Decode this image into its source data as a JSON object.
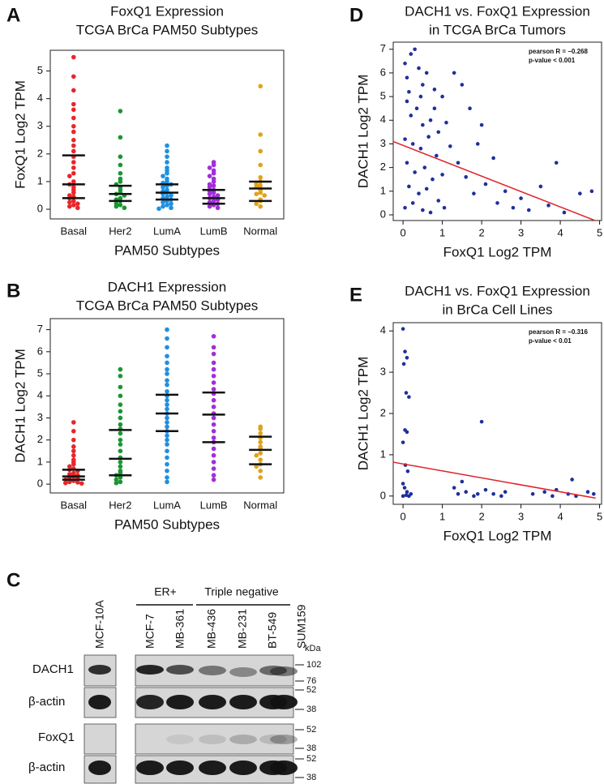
{
  "chart_data": [
    {
      "type": "beeswarm",
      "panel_label": "A",
      "title": "FoxQ1 Expression",
      "subtitle": "TCGA BrCa PAM50 Subtypes",
      "xlabel": "PAM50 Subtypes",
      "ylabel": "FoxQ1 Log2 TPM",
      "categories": [
        "Basal",
        "Her2",
        "LumA",
        "LumB",
        "Normal"
      ],
      "colors": [
        "#e8262a",
        "#1a9632",
        "#1f8fe0",
        "#a12fd8",
        "#e0a21a"
      ],
      "values": [
        [
          5.5,
          4.8,
          4.3,
          3.8,
          3.6,
          3.3,
          3.0,
          2.8,
          2.5,
          2.3,
          2.1,
          1.9,
          1.7,
          1.5,
          1.3,
          1.2,
          1.0,
          0.9,
          0.8,
          0.7,
          0.6,
          0.5,
          0.45,
          0.4,
          0.3,
          0.25,
          0.2,
          0.15,
          0.1,
          0.05
        ],
        [
          3.55,
          2.6,
          1.9,
          1.6,
          1.3,
          1.1,
          1.0,
          0.9,
          0.8,
          0.7,
          0.6,
          0.55,
          0.5,
          0.4,
          0.35,
          0.3,
          0.2,
          0.15,
          0.1,
          0.05
        ],
        [
          2.3,
          2.1,
          1.9,
          1.7,
          1.5,
          1.4,
          1.3,
          1.2,
          1.1,
          1.0,
          0.95,
          0.9,
          0.85,
          0.8,
          0.7,
          0.65,
          0.6,
          0.55,
          0.5,
          0.45,
          0.4,
          0.35,
          0.3,
          0.25,
          0.2,
          0.15,
          0.1,
          0.05,
          0.02
        ],
        [
          1.7,
          1.6,
          1.5,
          1.4,
          1.3,
          1.2,
          1.1,
          1.0,
          0.9,
          0.85,
          0.8,
          0.7,
          0.65,
          0.6,
          0.55,
          0.5,
          0.45,
          0.4,
          0.35,
          0.3,
          0.25,
          0.2,
          0.15,
          0.1,
          0.05
        ],
        [
          4.45,
          2.7,
          2.1,
          1.6,
          1.15,
          1.0,
          0.9,
          0.85,
          0.8,
          0.7,
          0.6,
          0.55,
          0.5,
          0.35,
          0.3,
          0.2,
          0.1
        ]
      ],
      "quartiles": [
        [
          0.4,
          0.9,
          1.95
        ],
        [
          0.3,
          0.55,
          0.85
        ],
        [
          0.35,
          0.6,
          0.9
        ],
        [
          0.2,
          0.4,
          0.7
        ],
        [
          0.3,
          0.75,
          1.0
        ]
      ],
      "ylim": [
        -0.35,
        5.75
      ],
      "yticks": [
        0,
        1,
        2,
        3,
        4,
        5
      ]
    },
    {
      "type": "beeswarm",
      "panel_label": "B",
      "title": "DACH1 Expression",
      "subtitle": "TCGA BrCa PAM50 Subtypes",
      "xlabel": "PAM50 Subtypes",
      "ylabel": "DACH1  Log2 TPM",
      "categories": [
        "Basal",
        "Her2",
        "LumA",
        "LumB",
        "Normal"
      ],
      "colors": [
        "#e8262a",
        "#1a9632",
        "#1f8fe0",
        "#a12fd8",
        "#e0a21a"
      ],
      "values": [
        [
          2.8,
          2.4,
          2.0,
          1.7,
          1.5,
          1.3,
          1.1,
          1.0,
          0.9,
          0.8,
          0.7,
          0.65,
          0.6,
          0.5,
          0.45,
          0.4,
          0.35,
          0.3,
          0.25,
          0.2,
          0.15,
          0.1,
          0.08,
          0.05,
          0.03
        ],
        [
          5.2,
          4.9,
          4.4,
          4.0,
          3.6,
          3.3,
          3.0,
          2.7,
          2.5,
          2.3,
          2.0,
          1.8,
          1.5,
          1.2,
          1.0,
          0.8,
          0.6,
          0.5,
          0.4,
          0.3,
          0.2,
          0.1,
          0.05
        ],
        [
          7.0,
          6.6,
          6.2,
          5.8,
          5.5,
          5.2,
          5.0,
          4.7,
          4.5,
          4.2,
          4.0,
          3.8,
          3.6,
          3.4,
          3.2,
          3.0,
          2.8,
          2.6,
          2.4,
          2.2,
          2.0,
          1.8,
          1.5,
          1.2,
          0.9,
          0.6,
          0.3,
          0.1
        ],
        [
          6.7,
          6.2,
          5.9,
          5.5,
          5.2,
          4.9,
          4.6,
          4.3,
          4.1,
          3.8,
          3.5,
          3.2,
          3.0,
          2.7,
          2.4,
          2.1,
          1.9,
          1.6,
          1.3,
          1.0,
          0.7,
          0.4,
          0.2
        ],
        [
          2.6,
          2.5,
          2.3,
          2.1,
          1.9,
          1.7,
          1.6,
          1.4,
          1.3,
          1.1,
          0.9,
          0.8,
          0.6,
          0.3
        ]
      ],
      "quartiles": [
        [
          0.2,
          0.35,
          0.65
        ],
        [
          0.4,
          1.15,
          2.45
        ],
        [
          2.4,
          3.2,
          4.05
        ],
        [
          1.9,
          3.15,
          4.15
        ],
        [
          0.9,
          1.55,
          2.15
        ]
      ],
      "ylim": [
        -0.4,
        7.5
      ],
      "yticks": [
        0,
        1,
        2,
        3,
        4,
        5,
        6,
        7
      ]
    },
    {
      "type": "scatter",
      "panel_label": "D",
      "title": "DACH1 vs. FoxQ1 Expression",
      "subtitle": "in TCGA BrCa Tumors",
      "xlabel": "FoxQ1 Log2 TPM",
      "ylabel": "DACH1  Log2 TPM",
      "color": "#1f2f9a",
      "fit_color": "#e0202a",
      "stats": [
        "pearson R = −0.268",
        "p-value < 0.001"
      ],
      "x": [
        0.05,
        0.1,
        0.2,
        0.3,
        0.4,
        0.5,
        0.6,
        0.8,
        1.0,
        1.3,
        0.1,
        0.2,
        0.35,
        0.5,
        0.7,
        0.9,
        1.1,
        0.05,
        0.25,
        0.45,
        0.65,
        0.85,
        1.2,
        0.1,
        0.3,
        0.55,
        0.75,
        1.0,
        0.15,
        0.4,
        0.6,
        0.9,
        0.05,
        0.25,
        0.5,
        0.7,
        1.05,
        1.4,
        1.6,
        1.8,
        2.0,
        2.1,
        2.4,
        2.6,
        2.8,
        3.0,
        3.2,
        3.5,
        3.7,
        3.9,
        4.1,
        4.5,
        4.8,
        1.5,
        1.7,
        1.9,
        2.3,
        0.15,
        0.45,
        0.8
      ],
      "y": [
        6.4,
        5.8,
        6.8,
        7.0,
        6.2,
        5.5,
        6.0,
        5.3,
        5.0,
        6.0,
        4.8,
        4.2,
        4.5,
        3.8,
        4.0,
        3.5,
        3.9,
        3.2,
        3.0,
        2.8,
        3.3,
        2.5,
        2.9,
        2.2,
        1.8,
        2.0,
        1.5,
        1.7,
        1.2,
        0.9,
        1.1,
        0.6,
        0.3,
        0.5,
        0.2,
        0.1,
        0.3,
        2.2,
        1.6,
        0.9,
        3.8,
        1.3,
        0.5,
        1.0,
        0.3,
        0.7,
        0.2,
        1.2,
        0.4,
        2.2,
        0.1,
        0.9,
        1.0,
        5.5,
        4.5,
        3.0,
        2.4,
        5.2,
        5.0,
        4.5
      ],
      "fit": {
        "x": [
          -0.25,
          4.9
        ],
        "y": [
          3.1,
          -0.25
        ]
      },
      "xlim": [
        -0.25,
        5.05
      ],
      "xticks": [
        0,
        1,
        2,
        3,
        4,
        5
      ],
      "ylim": [
        -0.24,
        7.3
      ],
      "yticks": [
        0,
        1,
        2,
        3,
        4,
        5,
        6,
        7
      ]
    },
    {
      "type": "scatter",
      "panel_label": "E",
      "title": "DACH1 vs. FoxQ1 Expression",
      "subtitle": "in BrCa Cell Lines",
      "xlabel": "FoxQ1 Log2 TPM",
      "ylabel": "DACH1  Log2 TPM",
      "color": "#1f2f9a",
      "fit_color": "#e0202a",
      "stats": [
        "pearson R = −0.316",
        "p-value < 0.01"
      ],
      "x": [
        0.0,
        0.05,
        0.1,
        0.02,
        0.08,
        0.15,
        0.05,
        0.1,
        0.0,
        0.06,
        0.12,
        0.0,
        0.04,
        0.1,
        0.2,
        0.08,
        0.0,
        0.15,
        1.3,
        1.4,
        1.5,
        1.6,
        1.8,
        1.9,
        2.0,
        2.1,
        2.3,
        2.5,
        2.6,
        3.3,
        3.6,
        3.8,
        3.9,
        4.2,
        4.3,
        4.4,
        4.7,
        4.85
      ],
      "y": [
        4.05,
        3.5,
        3.35,
        3.2,
        2.5,
        2.4,
        1.6,
        1.55,
        1.3,
        0.75,
        0.6,
        0.3,
        0.2,
        0.1,
        0.05,
        0.02,
        0.0,
        0.0,
        0.2,
        0.05,
        0.35,
        0.1,
        0.0,
        0.05,
        1.8,
        0.15,
        0.05,
        0.0,
        0.1,
        0.05,
        0.1,
        0.0,
        0.15,
        0.05,
        0.4,
        0.0,
        0.1,
        0.05
      ],
      "fit": {
        "x": [
          -0.25,
          4.9
        ],
        "y": [
          0.82,
          -0.05
        ]
      },
      "xlim": [
        -0.25,
        5.05
      ],
      "xticks": [
        0,
        1,
        2,
        3,
        4,
        5
      ],
      "ylim": [
        -0.2,
        4.2
      ],
      "yticks": [
        0,
        1,
        2,
        3,
        4
      ]
    }
  ],
  "blot": {
    "panel_label": "C",
    "groups": [
      "ER+",
      "Triple negative"
    ],
    "lanes": [
      "MCF-10A",
      "MCF-7",
      "MB-361",
      "MB-436",
      "MB-231",
      "BT-549",
      "SUM159"
    ],
    "unit": "kDa",
    "rows": [
      {
        "label": "DACH1",
        "markers": [
          102,
          76
        ]
      },
      {
        "label": "β-actin",
        "markers": [
          52,
          38
        ]
      },
      {
        "label": "FoxQ1",
        "markers": [
          52,
          38
        ]
      },
      {
        "label": "β-actin",
        "markers": [
          52,
          38
        ]
      }
    ]
  }
}
